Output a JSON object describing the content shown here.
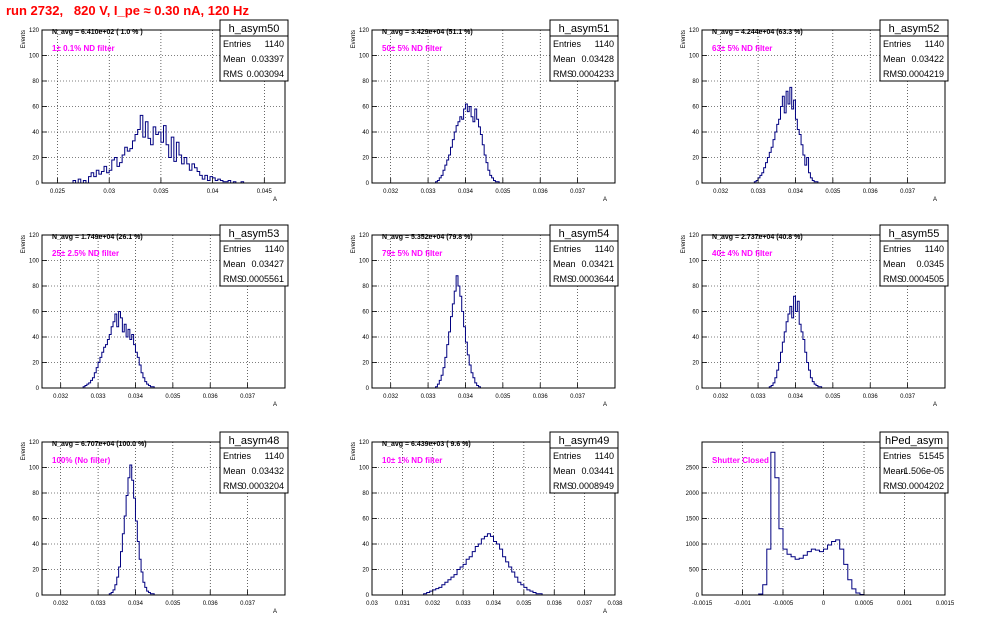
{
  "title": "run 2732,   820 V, I_pe ≈ 0.30 nA, 120 Hz",
  "colors": {
    "title": "#ff0000",
    "hist": "#000080",
    "filter_label": "#ff00ff",
    "grid": "#000000"
  },
  "chart_data": [
    {
      "type": "histogram",
      "name": "h_asym50",
      "ylabel": "Events",
      "xlabel": "A",
      "navg": "N_avg = 6.410e+02 ( 1.0 % )",
      "filter": "1± 0.1% ND filter",
      "stats": [
        [
          "Entries",
          "1140"
        ],
        [
          "Mean",
          "0.03397"
        ],
        [
          "RMS",
          "0.003094"
        ]
      ],
      "xlim": [
        0.0235,
        0.047
      ],
      "ylim": [
        0,
        120
      ],
      "xticks": [
        "0.025",
        "0.03",
        "0.035",
        "0.04",
        "0.045"
      ],
      "xtick_values": [
        0.025,
        0.03,
        0.035,
        0.04,
        0.045
      ],
      "yticks": [
        "0",
        "20",
        "40",
        "60",
        "80",
        "100",
        "120"
      ],
      "bins": {
        "start": 0.0265,
        "width": 0.00025,
        "values": [
          2,
          0,
          3,
          0,
          2,
          0,
          5,
          8,
          5,
          10,
          7,
          9,
          13,
          8,
          10,
          18,
          20,
          13,
          16,
          22,
          28,
          25,
          27,
          33,
          38,
          42,
          53,
          36,
          48,
          35,
          30,
          44,
          38,
          40,
          32,
          45,
          30,
          20,
          36,
          17,
          32,
          22,
          15,
          20,
          15,
          10,
          15,
          12,
          9,
          6,
          3,
          6,
          2,
          5,
          4,
          2,
          3,
          2,
          1,
          1,
          2,
          0,
          1,
          0,
          0,
          1
        ]
      }
    },
    {
      "type": "histogram",
      "name": "h_asym51",
      "ylabel": "Events",
      "xlabel": "A",
      "navg": "N_avg = 3.429e+04 (51.1 %)",
      "filter": "50± 5% ND filter",
      "stats": [
        [
          "Entries",
          "1140"
        ],
        [
          "Mean",
          "0.03428"
        ],
        [
          "RMS",
          "0.0004233"
        ]
      ],
      "xlim": [
        0.0315,
        0.038
      ],
      "ylim": [
        0,
        120
      ],
      "xticks": [
        "0.032",
        "0.033",
        "0.034",
        "0.035",
        "0.036",
        "0.037"
      ],
      "xtick_values": [
        0.032,
        0.033,
        0.034,
        0.035,
        0.036,
        0.037
      ],
      "yticks": [
        "0",
        "20",
        "40",
        "60",
        "80",
        "100",
        "120"
      ],
      "bins": {
        "start": 0.0332,
        "width": 5e-05,
        "values": [
          1,
          2,
          4,
          6,
          10,
          14,
          18,
          22,
          28,
          34,
          40,
          45,
          48,
          52,
          50,
          58,
          62,
          56,
          60,
          52,
          48,
          58,
          50,
          44,
          38,
          30,
          22,
          16,
          10,
          6,
          4,
          2,
          1,
          1
        ]
      }
    },
    {
      "type": "histogram",
      "name": "h_asym52",
      "ylabel": "Events",
      "xlabel": "A",
      "navg": "N_avg = 4.244e+04 (63.3 %)",
      "filter": "63± 5% ND filter",
      "stats": [
        [
          "Entries",
          "1140"
        ],
        [
          "Mean",
          "0.03422"
        ],
        [
          "RMS",
          "0.0004219"
        ]
      ],
      "xlim": [
        0.0315,
        0.038
      ],
      "ylim": [
        0,
        120
      ],
      "xticks": [
        "0.032",
        "0.033",
        "0.034",
        "0.035",
        "0.036",
        "0.037"
      ],
      "xtick_values": [
        0.032,
        0.033,
        0.034,
        0.035,
        0.036,
        0.037
      ],
      "yticks": [
        "0",
        "20",
        "40",
        "60",
        "80",
        "100",
        "120"
      ],
      "bins": {
        "start": 0.0329,
        "width": 5e-05,
        "values": [
          1,
          2,
          4,
          6,
          8,
          12,
          16,
          20,
          24,
          28,
          34,
          40,
          46,
          50,
          60,
          68,
          55,
          72,
          62,
          75,
          58,
          65,
          50,
          42,
          38,
          30,
          22,
          14,
          20,
          8,
          4,
          2,
          1,
          1
        ]
      }
    },
    {
      "type": "histogram",
      "name": "h_asym53",
      "ylabel": "Events",
      "xlabel": "A",
      "navg": "N_avg = 1.749e+04 (26.1 %)",
      "filter": "25± 2.5% ND filter",
      "stats": [
        [
          "Entries",
          "1140"
        ],
        [
          "Mean",
          "0.03427"
        ],
        [
          "RMS",
          "0.0005561"
        ]
      ],
      "xlim": [
        0.0315,
        0.038
      ],
      "ylim": [
        0,
        120
      ],
      "xticks": [
        "0.032",
        "0.033",
        "0.034",
        "0.035",
        "0.036",
        "0.037"
      ],
      "xtick_values": [
        0.032,
        0.033,
        0.034,
        0.035,
        0.036,
        0.037
      ],
      "yticks": [
        "0",
        "20",
        "40",
        "60",
        "80",
        "100",
        "120"
      ],
      "bins": {
        "start": 0.0326,
        "width": 5e-05,
        "values": [
          1,
          2,
          3,
          4,
          6,
          8,
          12,
          16,
          20,
          24,
          28,
          32,
          34,
          38,
          42,
          48,
          52,
          58,
          48,
          60,
          55,
          44,
          50,
          40,
          46,
          38,
          42,
          34,
          28,
          24,
          18,
          12,
          8,
          5,
          3,
          2,
          1,
          1
        ]
      }
    },
    {
      "type": "histogram",
      "name": "h_asym54",
      "ylabel": "Events",
      "xlabel": "A",
      "navg": "N_avg = 5.352e+04 (79.8 %)",
      "filter": "79± 5% ND filter",
      "stats": [
        [
          "Entries",
          "1140"
        ],
        [
          "Mean",
          "0.03421"
        ],
        [
          "RMS",
          "0.0003644"
        ]
      ],
      "xlim": [
        0.0315,
        0.038
      ],
      "ylim": [
        0,
        120
      ],
      "xticks": [
        "0.032",
        "0.033",
        "0.034",
        "0.035",
        "0.036",
        "0.037"
      ],
      "xtick_values": [
        0.032,
        0.033,
        0.034,
        0.035,
        0.036,
        0.037
      ],
      "yticks": [
        "0",
        "20",
        "40",
        "60",
        "80",
        "100",
        "120"
      ],
      "bins": {
        "start": 0.0332,
        "width": 5e-05,
        "values": [
          1,
          3,
          6,
          10,
          16,
          24,
          34,
          44,
          56,
          66,
          76,
          88,
          80,
          72,
          60,
          48,
          36,
          26,
          18,
          12,
          8,
          4,
          2,
          1
        ]
      }
    },
    {
      "type": "histogram",
      "name": "h_asym55",
      "ylabel": "Events",
      "xlabel": "A",
      "navg": "N_avg = 2.737e+04 (40.8 %)",
      "filter": "40± 4% ND filter",
      "stats": [
        [
          "Entries",
          "1140"
        ],
        [
          "Mean",
          "0.0345"
        ],
        [
          "RMS",
          "0.0004505"
        ]
      ],
      "xlim": [
        0.0315,
        0.038
      ],
      "ylim": [
        0,
        120
      ],
      "xticks": [
        "0.032",
        "0.033",
        "0.034",
        "0.035",
        "0.036",
        "0.037"
      ],
      "xtick_values": [
        0.032,
        0.033,
        0.034,
        0.035,
        0.036,
        0.037
      ],
      "yticks": [
        "0",
        "20",
        "40",
        "60",
        "80",
        "100",
        "120"
      ],
      "bins": {
        "start": 0.0333,
        "width": 5e-05,
        "values": [
          1,
          2,
          4,
          8,
          14,
          20,
          28,
          36,
          44,
          52,
          58,
          64,
          55,
          72,
          60,
          68,
          50,
          44,
          38,
          28,
          20,
          14,
          8,
          5,
          3,
          2,
          1,
          1
        ]
      }
    },
    {
      "type": "histogram",
      "name": "h_asym48",
      "ylabel": "Events",
      "xlabel": "A",
      "navg": "N_avg = 6.707e+04 (100.0 %)",
      "filter": "100% (No filter)",
      "stats": [
        [
          "Entries",
          "1140"
        ],
        [
          "Mean",
          "0.03432"
        ],
        [
          "RMS",
          "0.0003204"
        ]
      ],
      "xlim": [
        0.0315,
        0.038
      ],
      "ylim": [
        0,
        120
      ],
      "xticks": [
        "0.032",
        "0.033",
        "0.034",
        "0.035",
        "0.036",
        "0.037"
      ],
      "xtick_values": [
        0.032,
        0.033,
        0.034,
        0.035,
        0.036,
        0.037
      ],
      "yticks": [
        "0",
        "20",
        "40",
        "60",
        "80",
        "100",
        "120"
      ],
      "bins": {
        "start": 0.0333,
        "width": 5e-05,
        "values": [
          1,
          2,
          4,
          8,
          14,
          22,
          34,
          48,
          62,
          78,
          92,
          102,
          90,
          76,
          58,
          42,
          28,
          18,
          10,
          6,
          3,
          2,
          1,
          1
        ]
      }
    },
    {
      "type": "histogram",
      "name": "h_asym49",
      "ylabel": "Events",
      "xlabel": "A",
      "navg": "N_avg = 6.439e+03 ( 9.6 %)",
      "filter": "10± 1% ND filter",
      "stats": [
        [
          "Entries",
          "1140"
        ],
        [
          "Mean",
          "0.03441"
        ],
        [
          "RMS",
          "0.0008949"
        ]
      ],
      "xlim": [
        0.03,
        0.038
      ],
      "ylim": [
        0,
        120
      ],
      "xticks": [
        "0.03",
        "0.031",
        "0.032",
        "0.033",
        "0.034",
        "0.035",
        "0.036",
        "0.037",
        "0.038"
      ],
      "xtick_values": [
        0.03,
        0.031,
        0.032,
        0.033,
        0.034,
        0.035,
        0.036,
        0.037,
        0.038
      ],
      "yticks": [
        "0",
        "20",
        "40",
        "60",
        "80",
        "100",
        "120"
      ],
      "bins": {
        "start": 0.0317,
        "width": 0.0001,
        "values": [
          1,
          2,
          3,
          4,
          5,
          6,
          8,
          10,
          12,
          14,
          16,
          20,
          22,
          24,
          28,
          30,
          34,
          38,
          40,
          44,
          46,
          48,
          46,
          42,
          40,
          36,
          30,
          26,
          22,
          18,
          14,
          10,
          8,
          6,
          4,
          3,
          2,
          1,
          1
        ]
      }
    },
    {
      "type": "histogram",
      "name": "hPed_asym",
      "ylabel": "",
      "xlabel": "",
      "navg": "",
      "filter": "Shutter Closed",
      "stats": [
        [
          "Entries",
          "51545"
        ],
        [
          "Mean",
          "-1.506e-05"
        ],
        [
          "RMS",
          "0.0004202"
        ]
      ],
      "xlim": [
        -0.0015,
        0.0015
      ],
      "ylim": [
        0,
        3000
      ],
      "xticks": [
        "-0.0015",
        "-0.001",
        "-0.0005",
        "0",
        "0.0005",
        "0.001",
        "0.0015"
      ],
      "xtick_values": [
        -0.0015,
        -0.001,
        -0.0005,
        0,
        0.0005,
        0.001,
        0.0015
      ],
      "yticks": [
        "0",
        "500",
        "1000",
        "1500",
        "2000",
        "2500"
      ],
      "ytick_values": [
        0,
        500,
        1000,
        1500,
        2000,
        2500
      ],
      "bins": {
        "start": -0.0008,
        "width": 5e-05,
        "values": [
          20,
          200,
          900,
          2800,
          2300,
          1300,
          900,
          800,
          750,
          700,
          720,
          780,
          850,
          900,
          880,
          850,
          900,
          980,
          1050,
          1080,
          900,
          600,
          300,
          120,
          40,
          10
        ]
      }
    }
  ]
}
